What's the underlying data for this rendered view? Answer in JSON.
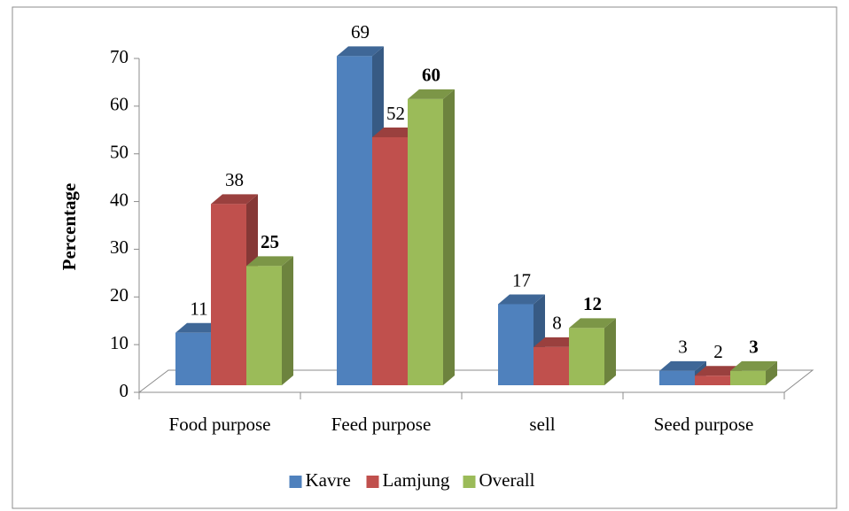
{
  "chart_data": {
    "type": "bar3d",
    "y_label": "Percentage",
    "categories": [
      "Food purpose",
      "Feed purpose",
      "sell",
      "Seed purpose"
    ],
    "series": [
      {
        "name": "Kavre",
        "color": "#4f81bd",
        "values": [
          11,
          69,
          17,
          3
        ],
        "label_bold": false
      },
      {
        "name": "Lamjung",
        "color": "#c0504d",
        "values": [
          38,
          52,
          8,
          2
        ],
        "label_bold": false
      },
      {
        "name": "Overall",
        "color": "#9bbb59",
        "values": [
          25,
          60,
          12,
          3
        ],
        "label_bold": true
      }
    ],
    "ylim": [
      0,
      70
    ],
    "yticks": [
      0,
      10,
      20,
      30,
      40,
      50,
      60,
      70
    ],
    "legend": "bottom"
  }
}
